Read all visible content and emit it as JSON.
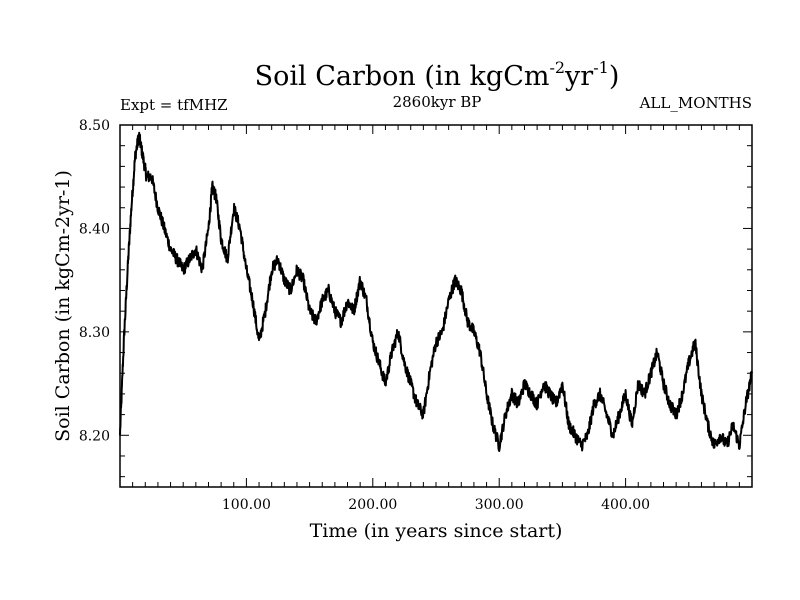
{
  "header": {
    "title_main": "Soil Carbon (in kgCm",
    "title_sup1": "-2",
    "title_mid": "yr",
    "title_sup2": "-1",
    "title_end": ")",
    "expt": "Expt = tfMHZ",
    "subtitle": "2860kyr BP",
    "months": "ALL_MONTHS"
  },
  "chart_data": {
    "type": "line",
    "title": "Soil Carbon (in kgCm-2yr-1)",
    "subtitle": "2860kyr BP",
    "xlabel": "Time (in years since start)",
    "ylabel": "Soil Carbon (in kgCm-2yr-1)",
    "xlim": [
      0,
      500
    ],
    "ylim": [
      8.15,
      8.5
    ],
    "x_ticks": [
      100,
      200,
      300,
      400
    ],
    "x_tick_labels": [
      "100.00",
      "200.00",
      "300.00",
      "400.00"
    ],
    "y_ticks": [
      8.2,
      8.3,
      8.4,
      8.5
    ],
    "y_tick_labels": [
      "8.20",
      "8.30",
      "8.40",
      "8.50"
    ],
    "series": [
      {
        "name": "Soil Carbon",
        "color": "#000000",
        "x": [
          0,
          3,
          6,
          9,
          12,
          15,
          18,
          21,
          25,
          30,
          35,
          40,
          45,
          50,
          55,
          60,
          65,
          70,
          73,
          76,
          80,
          85,
          90,
          95,
          100,
          105,
          110,
          115,
          120,
          125,
          130,
          135,
          140,
          145,
          150,
          155,
          160,
          165,
          170,
          175,
          180,
          185,
          190,
          195,
          200,
          205,
          210,
          215,
          220,
          225,
          230,
          235,
          240,
          245,
          250,
          255,
          260,
          265,
          270,
          275,
          280,
          285,
          290,
          295,
          300,
          305,
          310,
          315,
          320,
          325,
          330,
          335,
          340,
          345,
          350,
          355,
          360,
          365,
          370,
          375,
          380,
          385,
          390,
          395,
          400,
          405,
          410,
          415,
          420,
          425,
          430,
          435,
          440,
          445,
          450,
          455,
          460,
          465,
          470,
          475,
          480,
          485,
          490,
          495,
          500
        ],
        "values": [
          8.2,
          8.29,
          8.36,
          8.42,
          8.47,
          8.49,
          8.47,
          8.45,
          8.45,
          8.42,
          8.4,
          8.38,
          8.37,
          8.36,
          8.37,
          8.38,
          8.36,
          8.4,
          8.44,
          8.43,
          8.39,
          8.37,
          8.42,
          8.4,
          8.36,
          8.33,
          8.29,
          8.32,
          8.36,
          8.37,
          8.35,
          8.34,
          8.36,
          8.35,
          8.32,
          8.31,
          8.33,
          8.34,
          8.32,
          8.31,
          8.33,
          8.32,
          8.35,
          8.33,
          8.29,
          8.27,
          8.25,
          8.28,
          8.3,
          8.27,
          8.25,
          8.23,
          8.22,
          8.26,
          8.29,
          8.3,
          8.33,
          8.35,
          8.34,
          8.31,
          8.3,
          8.28,
          8.24,
          8.21,
          8.19,
          8.22,
          8.24,
          8.23,
          8.25,
          8.24,
          8.23,
          8.25,
          8.24,
          8.23,
          8.25,
          8.21,
          8.2,
          8.19,
          8.2,
          8.23,
          8.24,
          8.22,
          8.2,
          8.22,
          8.24,
          8.21,
          8.25,
          8.24,
          8.26,
          8.28,
          8.25,
          8.23,
          8.22,
          8.24,
          8.27,
          8.29,
          8.24,
          8.21,
          8.19,
          8.2,
          8.19,
          8.21,
          8.19,
          8.23,
          8.26
        ]
      }
    ]
  }
}
